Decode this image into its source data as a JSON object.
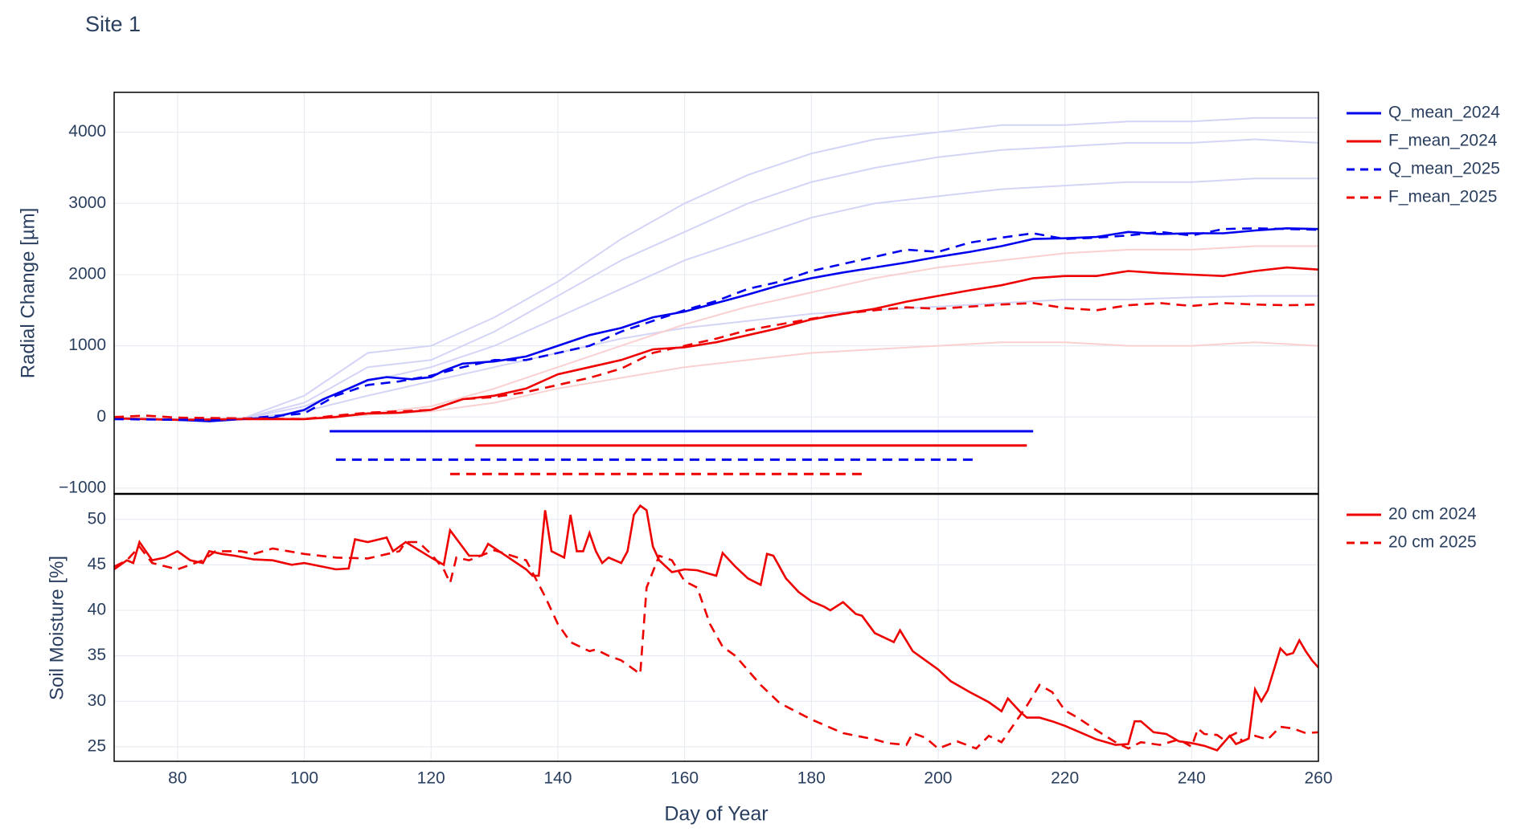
{
  "chart_data": [
    {
      "type": "line",
      "title": "Site 1",
      "ylabel": "Radial Change [µm]",
      "xlim": [
        70,
        260
      ],
      "xticks": [
        80,
        100,
        120,
        140,
        160,
        180,
        200,
        220,
        240,
        260
      ],
      "ylim": [
        -1080,
        4560
      ],
      "yticks": [
        {
          "value": -1000,
          "label": "−1000"
        },
        0,
        1000,
        2000,
        3000,
        4000
      ],
      "grid": true,
      "series": [
        {
          "color": "#d4d4f7",
          "x": [
            70,
            80,
            90,
            100,
            110,
            120,
            130,
            140,
            150,
            160,
            170,
            180,
            190,
            200,
            210,
            220,
            230,
            240,
            250,
            260
          ],
          "values": [
            -20,
            -40,
            -30,
            300,
            900,
            1000,
            1400,
            1900,
            2500,
            3000,
            3400,
            3700,
            3900,
            4000,
            4100,
            4100,
            4150,
            4150,
            4200,
            4200
          ]
        },
        {
          "color": "#d4d4f7",
          "x": [
            70,
            80,
            90,
            100,
            110,
            120,
            130,
            140,
            150,
            160,
            170,
            180,
            190,
            200,
            210,
            220,
            230,
            240,
            250,
            260
          ],
          "values": [
            -20,
            -40,
            -30,
            200,
            700,
            800,
            1200,
            1700,
            2200,
            2600,
            3000,
            3300,
            3500,
            3650,
            3750,
            3800,
            3850,
            3850,
            3900,
            3850
          ]
        },
        {
          "color": "#d4d4f7",
          "x": [
            70,
            80,
            90,
            100,
            110,
            120,
            130,
            140,
            150,
            160,
            170,
            180,
            190,
            200,
            210,
            220,
            230,
            240,
            250,
            260
          ],
          "values": [
            -20,
            -40,
            -30,
            150,
            500,
            700,
            1000,
            1400,
            1800,
            2200,
            2500,
            2800,
            3000,
            3100,
            3200,
            3250,
            3300,
            3300,
            3350,
            3350
          ]
        },
        {
          "color": "#d4d4f7",
          "x": [
            70,
            80,
            90,
            100,
            110,
            120,
            130,
            140,
            150,
            160,
            170,
            180,
            190,
            200,
            210,
            220,
            230,
            240,
            250,
            260
          ],
          "values": [
            -20,
            -40,
            -30,
            80,
            300,
            500,
            700,
            900,
            1100,
            1250,
            1350,
            1450,
            1500,
            1550,
            1600,
            1650,
            1650,
            1680,
            1700,
            1700
          ]
        },
        {
          "color": "#fad0d0",
          "x": [
            70,
            80,
            90,
            100,
            110,
            120,
            130,
            140,
            150,
            160,
            170,
            180,
            190,
            200,
            210,
            220,
            230,
            240,
            250,
            260
          ],
          "values": [
            0,
            -30,
            -20,
            -20,
            50,
            150,
            400,
            700,
            1000,
            1300,
            1550,
            1750,
            1950,
            2100,
            2200,
            2300,
            2350,
            2350,
            2400,
            2400
          ]
        },
        {
          "color": "#fad0d0",
          "x": [
            70,
            80,
            90,
            100,
            110,
            120,
            130,
            140,
            150,
            160,
            170,
            180,
            190,
            200,
            210,
            220,
            230,
            240,
            250,
            260
          ],
          "values": [
            0,
            -30,
            -20,
            -20,
            30,
            80,
            200,
            400,
            550,
            700,
            800,
            900,
            950,
            1000,
            1050,
            1050,
            1000,
            1000,
            1050,
            1000
          ]
        }
      ],
      "periods": [
        {
          "color": "#0000ee",
          "dash": false,
          "x": [
            104,
            215
          ],
          "values": [
            -200,
            -200
          ]
        },
        {
          "color": "#ee0000",
          "dash": false,
          "x": [
            127,
            214
          ],
          "values": [
            -400,
            -400
          ]
        },
        {
          "color": "#0000ee",
          "dash": true,
          "x": [
            105,
            206
          ],
          "values": [
            -600,
            -600
          ]
        },
        {
          "color": "#ee0000",
          "dash": true,
          "x": [
            123,
            188
          ],
          "values": [
            -800,
            -800
          ]
        }
      ],
      "legend_series": [
        {
          "name": "Q_mean_2024",
          "color": "#0000ee",
          "dash": false,
          "x": [
            70,
            75,
            80,
            85,
            90,
            95,
            100,
            103,
            107,
            110,
            113,
            117,
            120,
            122,
            125,
            130,
            135,
            140,
            145,
            150,
            155,
            160,
            165,
            170,
            175,
            180,
            185,
            190,
            195,
            200,
            205,
            210,
            215,
            220,
            225,
            230,
            235,
            240,
            245,
            250,
            255,
            260
          ],
          "values": [
            -20,
            -30,
            -40,
            -60,
            -30,
            -10,
            100,
            250,
            400,
            520,
            560,
            530,
            560,
            650,
            750,
            780,
            850,
            1000,
            1150,
            1250,
            1400,
            1480,
            1600,
            1720,
            1850,
            1950,
            2030,
            2100,
            2170,
            2250,
            2320,
            2400,
            2500,
            2510,
            2530,
            2600,
            2570,
            2580,
            2580,
            2620,
            2650,
            2640
          ]
        },
        {
          "name": "F_mean_2024",
          "color": "#ee0000",
          "dash": false,
          "x": [
            70,
            80,
            90,
            100,
            105,
            110,
            115,
            120,
            125,
            130,
            135,
            140,
            145,
            150,
            155,
            160,
            165,
            170,
            175,
            180,
            185,
            190,
            195,
            200,
            205,
            210,
            215,
            220,
            225,
            230,
            235,
            240,
            245,
            250,
            255,
            260
          ],
          "values": [
            -20,
            -40,
            -30,
            -30,
            0,
            50,
            60,
            100,
            250,
            300,
            400,
            600,
            700,
            800,
            950,
            980,
            1050,
            1150,
            1250,
            1370,
            1450,
            1520,
            1620,
            1700,
            1780,
            1850,
            1950,
            1980,
            1980,
            2050,
            2020,
            2000,
            1980,
            2050,
            2100,
            2070
          ]
        },
        {
          "name": "Q_mean_2025",
          "color": "#0000ee",
          "dash": true,
          "x": [
            70,
            80,
            90,
            100,
            105,
            110,
            115,
            120,
            125,
            130,
            135,
            140,
            145,
            150,
            155,
            160,
            165,
            170,
            175,
            180,
            185,
            190,
            195,
            200,
            205,
            210,
            215,
            220,
            225,
            230,
            235,
            240,
            245,
            250,
            255,
            260
          ],
          "values": [
            -30,
            -40,
            -30,
            50,
            300,
            450,
            500,
            580,
            700,
            800,
            800,
            900,
            1000,
            1200,
            1350,
            1500,
            1630,
            1800,
            1900,
            2050,
            2150,
            2250,
            2350,
            2320,
            2450,
            2520,
            2580,
            2500,
            2520,
            2550,
            2600,
            2550,
            2640,
            2650,
            2640,
            2630
          ]
        },
        {
          "name": "F_mean_2025",
          "color": "#ee0000",
          "dash": true,
          "x": [
            70,
            75,
            80,
            90,
            100,
            105,
            110,
            115,
            120,
            125,
            130,
            135,
            140,
            145,
            150,
            155,
            160,
            165,
            170,
            175,
            180,
            185,
            190,
            195,
            200,
            205,
            210,
            215,
            220,
            225,
            230,
            235,
            240,
            245,
            250,
            255,
            260
          ],
          "values": [
            0,
            20,
            -10,
            -20,
            -30,
            20,
            60,
            80,
            100,
            250,
            280,
            350,
            450,
            550,
            680,
            900,
            1000,
            1100,
            1220,
            1300,
            1380,
            1450,
            1500,
            1540,
            1520,
            1550,
            1580,
            1600,
            1530,
            1500,
            1570,
            1600,
            1560,
            1600,
            1580,
            1570,
            1580
          ]
        }
      ]
    },
    {
      "type": "line",
      "ylabel": "Soil Moisture [%]",
      "xlabel": "Day of Year",
      "xlim": [
        70,
        260
      ],
      "xticks": [
        80,
        100,
        120,
        140,
        160,
        180,
        200,
        220,
        240,
        260
      ],
      "ylim": [
        23.4,
        52.8
      ],
      "yticks": [
        25,
        30,
        35,
        40,
        45,
        50
      ],
      "grid": true,
      "periods": [],
      "series": [],
      "legend_series": [
        {
          "name": "20 cm 2024",
          "color": "#ee0000",
          "dash": false,
          "x": [
            70,
            72,
            73,
            74,
            76,
            78,
            80,
            82,
            84,
            85,
            87,
            89,
            92,
            95,
            98,
            100,
            105,
            107,
            108,
            110,
            113,
            114,
            116,
            120,
            122,
            123,
            126,
            128,
            129,
            135,
            136,
            137,
            138,
            139,
            141,
            142,
            143,
            144,
            145,
            146,
            147,
            148,
            150,
            151,
            152,
            153,
            154,
            155,
            156,
            158,
            160,
            162,
            164,
            165,
            166,
            168,
            170,
            172,
            173,
            174,
            176,
            178,
            180,
            182,
            183,
            185,
            187,
            188,
            190,
            193,
            194,
            196,
            198,
            200,
            202,
            205,
            208,
            210,
            211,
            213,
            214,
            216,
            218,
            220,
            222,
            225,
            228,
            230,
            231,
            232,
            234,
            236,
            238,
            240,
            242,
            244,
            246,
            247,
            248,
            249,
            250,
            251,
            252,
            254,
            255,
            256,
            257,
            258,
            259,
            260
          ],
          "values": [
            44.5,
            45.5,
            45.2,
            47.5,
            45.5,
            45.8,
            46.5,
            45.5,
            45.2,
            46.5,
            46.2,
            46,
            45.6,
            45.5,
            45,
            45.2,
            44.5,
            44.6,
            47.8,
            47.5,
            48,
            46.5,
            47.5,
            45.8,
            45,
            48.8,
            46,
            46,
            47.3,
            44.5,
            43.8,
            43.8,
            51,
            46.5,
            45.8,
            50.5,
            46.5,
            46.5,
            48.5,
            46.5,
            45.2,
            45.8,
            45.2,
            46.5,
            50.5,
            51.5,
            51,
            47,
            45.5,
            44.2,
            44.5,
            44.4,
            44,
            43.8,
            46.3,
            44.8,
            43.5,
            42.8,
            46.2,
            46,
            43.5,
            42,
            41,
            40.4,
            40,
            40.9,
            39.6,
            39.4,
            37.5,
            36.5,
            37.8,
            35.5,
            34.5,
            33.5,
            32.2,
            31,
            29.9,
            28.9,
            30.3,
            28.8,
            28.2,
            28.2,
            27.8,
            27.3,
            26.7,
            25.8,
            25.2,
            25.3,
            27.8,
            27.8,
            26.6,
            26.4,
            25.6,
            25.4,
            25.1,
            24.6,
            26.2,
            25.3,
            25.6,
            25.9,
            31.3,
            30,
            31.2,
            35.8,
            35.1,
            35.3,
            36.7,
            35.5,
            34.5,
            33.7
          ]
        },
        {
          "name": "20 cm 2025",
          "color": "#ee0000",
          "dash": true,
          "x": [
            70,
            72,
            74,
            76,
            80,
            82,
            84,
            86,
            90,
            92,
            95,
            100,
            105,
            110,
            115,
            116,
            118,
            120,
            122,
            123,
            124,
            126,
            130,
            135,
            138,
            140,
            142,
            145,
            146,
            148,
            150,
            152,
            153,
            154,
            156,
            158,
            160,
            162,
            164,
            166,
            168,
            172,
            175,
            180,
            185,
            190,
            192,
            195,
            196,
            198,
            200,
            203,
            206,
            208,
            210,
            214,
            216,
            218,
            220,
            222,
            225,
            228,
            230,
            232,
            235,
            238,
            240,
            241,
            242,
            244,
            245,
            247,
            248,
            250,
            252,
            254,
            256,
            258,
            260
          ],
          "values": [
            44.8,
            45.5,
            47,
            45.2,
            44.5,
            45,
            45.5,
            46.5,
            46.5,
            46.2,
            46.8,
            46.2,
            45.8,
            45.7,
            46.5,
            47.5,
            47.5,
            46.2,
            44.5,
            43,
            45.8,
            45.5,
            46.6,
            45.5,
            41.5,
            38.5,
            36.5,
            35.5,
            35.7,
            35,
            34.5,
            33.5,
            33,
            42.5,
            46,
            45.5,
            43.2,
            42.5,
            38.5,
            36,
            35,
            31.8,
            29.8,
            28,
            26.5,
            25.8,
            25.4,
            25.2,
            26.5,
            26,
            24.8,
            25.6,
            24.8,
            26.2,
            25.5,
            29.5,
            31.8,
            31,
            29,
            28.2,
            26.8,
            25.5,
            24.8,
            25.5,
            25.2,
            25.8,
            25,
            27,
            26.4,
            26.3,
            25.8,
            26.5,
            25.6,
            26.2,
            25.8,
            27.2,
            27,
            26.5,
            26.6
          ]
        }
      ]
    }
  ]
}
